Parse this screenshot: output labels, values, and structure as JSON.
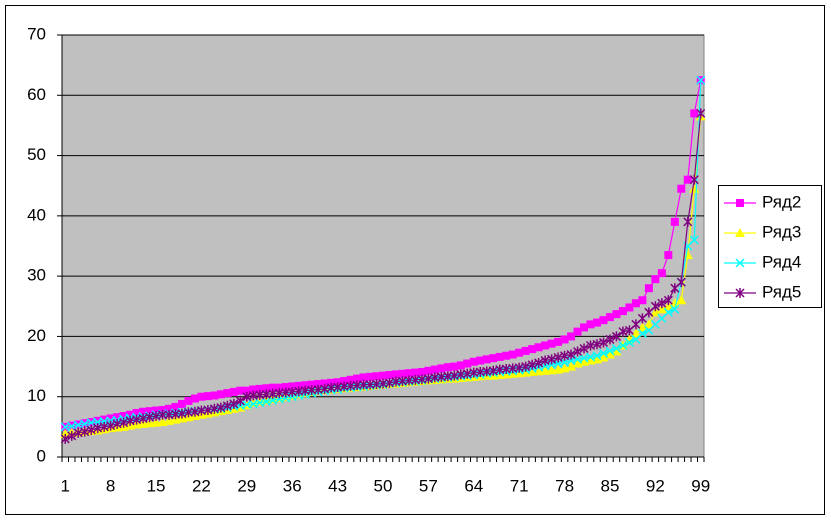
{
  "chart_data": {
    "type": "line",
    "categories": [
      "1",
      null,
      null,
      null,
      null,
      null,
      null,
      "8",
      null,
      null,
      null,
      null,
      null,
      null,
      "15",
      null,
      null,
      null,
      null,
      null,
      null,
      "22",
      null,
      null,
      null,
      null,
      null,
      null,
      "29",
      null,
      null,
      null,
      null,
      null,
      null,
      "36",
      null,
      null,
      null,
      null,
      null,
      null,
      "43",
      null,
      null,
      null,
      null,
      null,
      null,
      "50",
      null,
      null,
      null,
      null,
      null,
      null,
      "57",
      null,
      null,
      null,
      null,
      null,
      null,
      "64",
      null,
      null,
      null,
      null,
      null,
      null,
      "71",
      null,
      null,
      null,
      null,
      null,
      null,
      "78",
      null,
      null,
      null,
      null,
      null,
      null,
      "85",
      null,
      null,
      null,
      null,
      null,
      null,
      "92",
      null,
      null,
      null,
      null,
      null,
      null,
      "99"
    ],
    "ylim": [
      0,
      70
    ],
    "yticks": [
      0,
      10,
      20,
      30,
      40,
      50,
      60,
      70
    ],
    "grid": true,
    "legend": "right",
    "series": [
      {
        "name": "Ряд2",
        "color": "#ff00ff",
        "marker": "square",
        "values": [
          5,
          5.2,
          5.4,
          5.6,
          5.8,
          6,
          6.2,
          6.4,
          6.6,
          6.8,
          7,
          7.3,
          7.5,
          7.6,
          7.7,
          7.8,
          8,
          8.3,
          8.8,
          9.3,
          9.7,
          10,
          10.1,
          10.2,
          10.4,
          10.6,
          10.8,
          11,
          11,
          11.2,
          11.3,
          11.4,
          11.5,
          11.5,
          11.6,
          11.7,
          11.8,
          11.9,
          12,
          12.1,
          12.2,
          12.3,
          12.4,
          12.6,
          12.8,
          13,
          13.2,
          13.3,
          13.4,
          13.5,
          13.6,
          13.7,
          13.8,
          13.9,
          14,
          14.1,
          14.3,
          14.5,
          14.7,
          14.9,
          15,
          15.2,
          15.5,
          15.8,
          16,
          16.2,
          16.4,
          16.6,
          16.8,
          17,
          17.3,
          17.6,
          17.9,
          18.2,
          18.5,
          18.8,
          19.1,
          19.5,
          20,
          20.8,
          21.5,
          22,
          22.3,
          22.7,
          23.2,
          23.7,
          24.2,
          24.8,
          25.5,
          26,
          28,
          29.5,
          30.5,
          33.5,
          39,
          44.5,
          46,
          57,
          62.5
        ]
      },
      {
        "name": "Ряд3",
        "color": "#ffff00",
        "marker": "triangle",
        "values": [
          3.8,
          4,
          4.1,
          4.2,
          4.3,
          4.4,
          4.6,
          4.8,
          4.9,
          5,
          5.2,
          5.4,
          5.5,
          5.6,
          5.7,
          5.8,
          6,
          6.2,
          6.4,
          6.6,
          6.8,
          7,
          7.2,
          7.4,
          7.6,
          7.8,
          8,
          8.2,
          8.6,
          9,
          9.2,
          9.4,
          9.6,
          9.8,
          10,
          10.2,
          10.4,
          10.6,
          10.8,
          11,
          11.1,
          11.2,
          11.3,
          11.4,
          11.5,
          11.6,
          11.7,
          11.8,
          11.9,
          12,
          12.1,
          12.2,
          12.3,
          12.4,
          12.5,
          12.6,
          12.7,
          12.8,
          12.9,
          13,
          13,
          13.1,
          13.2,
          13.3,
          13.4,
          13.5,
          13.5,
          13.6,
          13.7,
          13.8,
          13.9,
          14,
          14.1,
          14.2,
          14.3,
          14.4,
          14.5,
          14.7,
          15,
          15.5,
          15.8,
          16,
          16.2,
          16.5,
          17,
          17.5,
          18.5,
          19.5,
          20.5,
          21.5,
          22,
          24,
          24.5,
          25,
          25.5,
          26,
          33.5,
          44.5,
          56.5
        ]
      },
      {
        "name": "Ряд4",
        "color": "#00ffff",
        "marker": "x",
        "values": [
          5,
          5.1,
          5.3,
          5.5,
          5.7,
          5.8,
          5.9,
          6,
          6.1,
          6.3,
          6.5,
          6.6,
          6.7,
          6.8,
          7,
          7.1,
          7.2,
          7.3,
          7.4,
          7.5,
          7.6,
          7.7,
          7.8,
          7.9,
          8,
          8.2,
          8.4,
          8.5,
          8.7,
          8.8,
          9,
          9.2,
          9.4,
          9.6,
          9.8,
          10,
          10.2,
          10.4,
          10.6,
          10.8,
          11,
          11.1,
          11.2,
          11.4,
          11.5,
          11.6,
          11.7,
          11.8,
          11.9,
          12,
          12.2,
          12.3,
          12.4,
          12.5,
          12.6,
          12.7,
          12.9,
          13,
          13.1,
          13.2,
          13.3,
          13.4,
          13.5,
          13.6,
          13.7,
          13.9,
          14,
          14.1,
          14.2,
          14.3,
          14.4,
          14.5,
          14.7,
          14.9,
          15.1,
          15.3,
          15.5,
          15.7,
          16,
          16.2,
          16.4,
          16.6,
          16.8,
          17.2,
          17.6,
          18,
          18.5,
          19,
          19.5,
          20.5,
          21,
          22,
          23,
          24,
          24.5,
          29,
          35,
          36,
          62.5
        ]
      },
      {
        "name": "Ряд5",
        "color": "#800080",
        "marker": "star",
        "values": [
          3,
          3.5,
          4,
          4.2,
          4.5,
          4.8,
          5,
          5.2,
          5.5,
          5.7,
          6,
          6.2,
          6.4,
          6.6,
          6.8,
          7,
          7,
          7.1,
          7.2,
          7.4,
          7.5,
          7.7,
          7.8,
          8,
          8.2,
          8.5,
          8.8,
          9.3,
          10,
          10.2,
          10.3,
          10.4,
          10.5,
          10.6,
          10.7,
          10.8,
          10.9,
          11,
          11.1,
          11.2,
          11.3,
          11.5,
          11.6,
          11.7,
          11.8,
          11.9,
          12,
          12,
          12.1,
          12.2,
          12.3,
          12.5,
          12.6,
          12.7,
          12.8,
          12.9,
          13,
          13.2,
          13.3,
          13.4,
          13.5,
          13.7,
          13.8,
          14,
          14.1,
          14.2,
          14.3,
          14.5,
          14.6,
          14.7,
          14.8,
          15,
          15.3,
          15.6,
          16,
          16.2,
          16.5,
          16.8,
          17,
          17.5,
          18,
          18.5,
          18.7,
          19,
          19.5,
          20,
          20.8,
          21,
          22,
          23,
          24,
          25,
          25.5,
          26,
          28,
          29,
          39,
          46,
          57
        ]
      }
    ]
  }
}
